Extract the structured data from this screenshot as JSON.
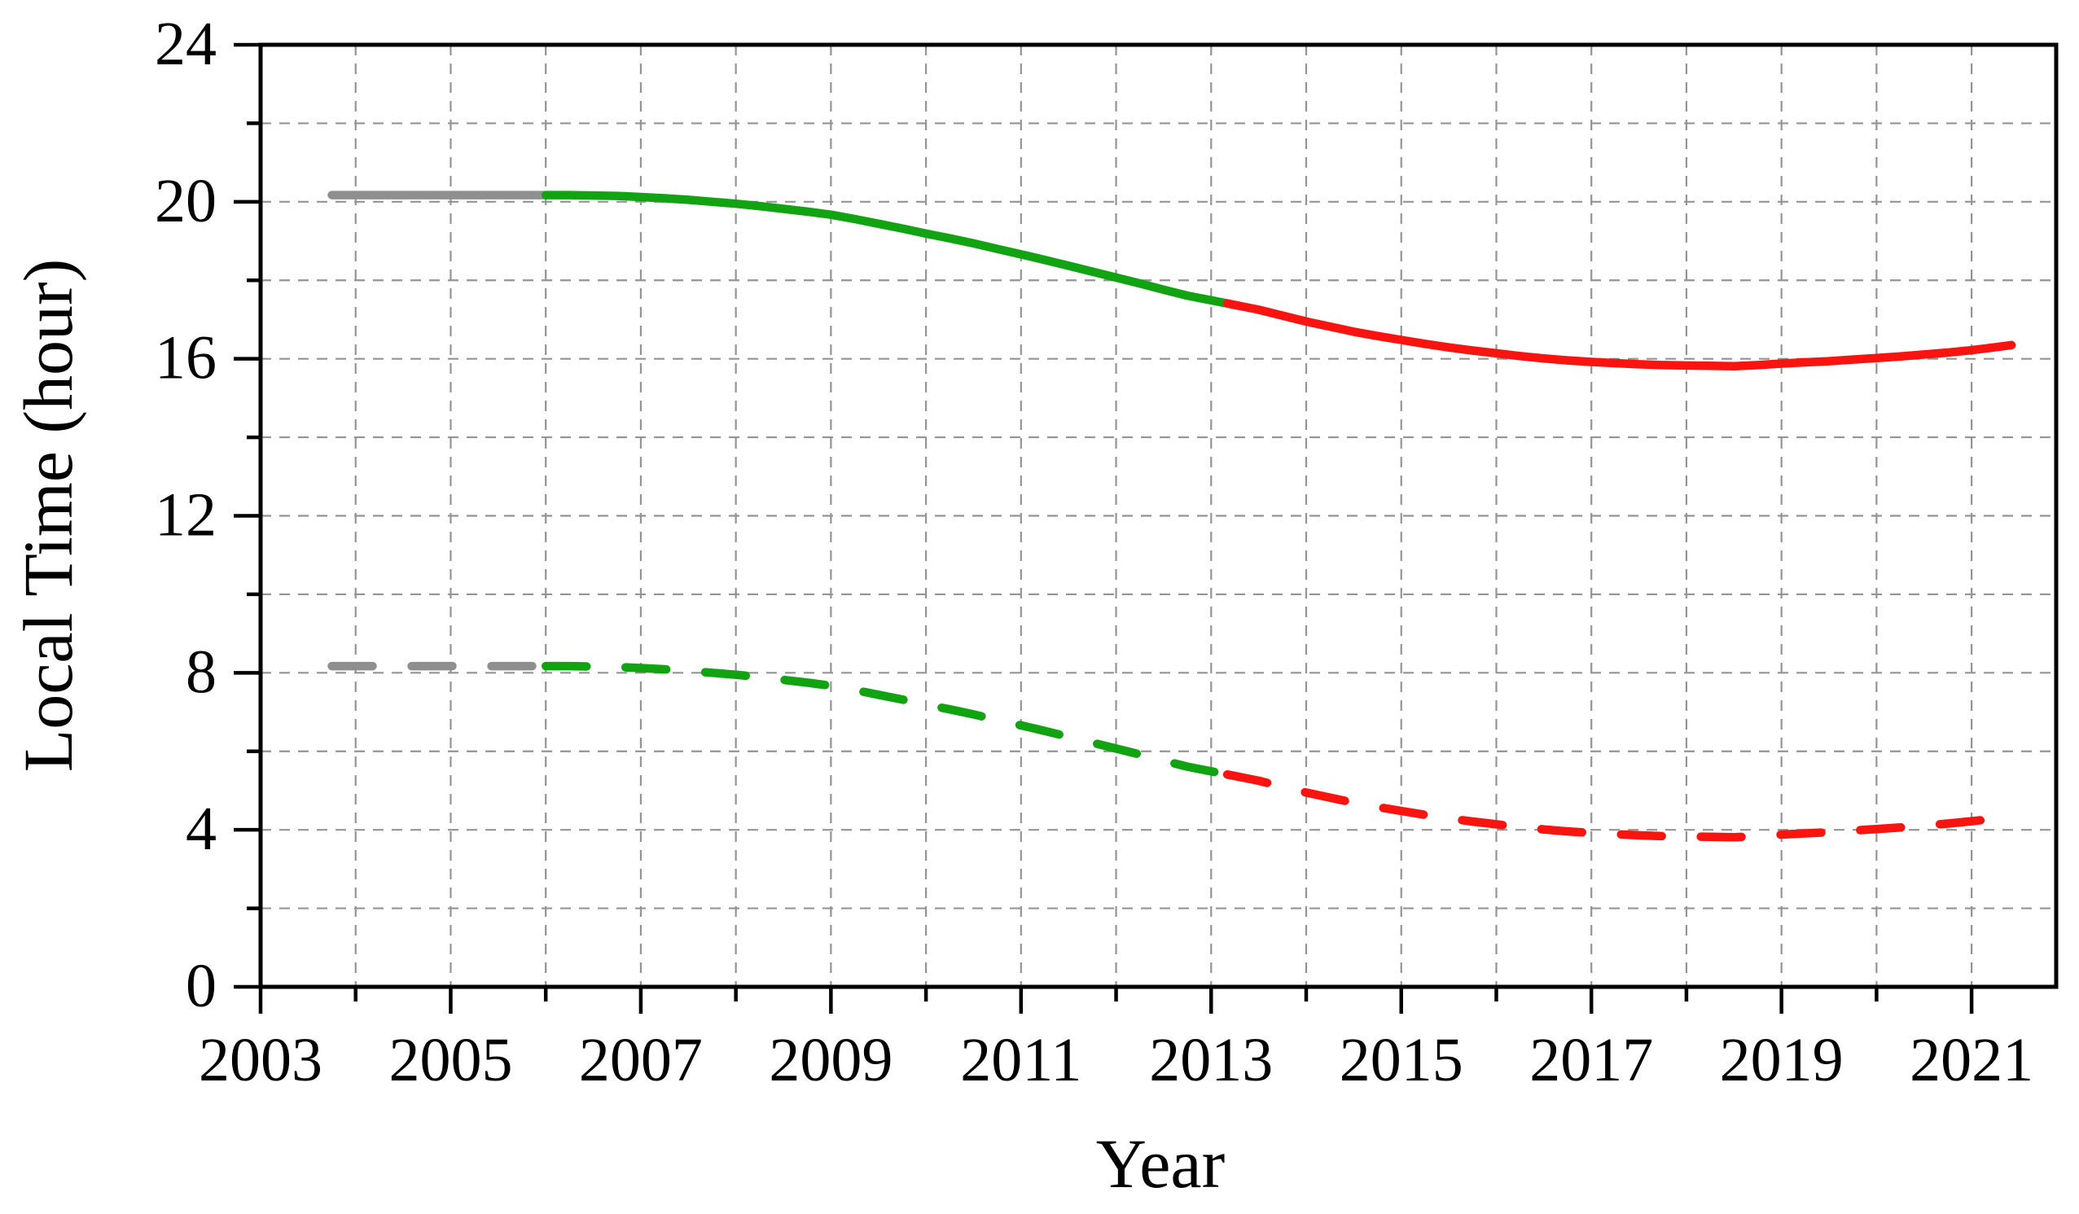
{
  "figure": {
    "background_color": "#ffffff",
    "frame_color": "#000000",
    "grid_color": "#949494"
  },
  "chart_data": {
    "type": "line",
    "title": "",
    "xlabel": "Year",
    "ylabel": "Local Time (hour)",
    "xlim": [
      2003,
      2021.89
    ],
    "ylim": [
      0,
      24
    ],
    "grid": "dashed gray grid at every year (x) and every 2 hours (y)",
    "legend": "none",
    "x_major_ticks": [
      2003,
      2005,
      2007,
      2009,
      2011,
      2013,
      2015,
      2017,
      2019,
      2021
    ],
    "x_major_tick_labels": [
      "2003",
      "2005",
      "2007",
      "2009",
      "2011",
      "2013",
      "2015",
      "2017",
      "2019",
      "2021"
    ],
    "x_minor_ticks": [
      2004,
      2006,
      2008,
      2010,
      2012,
      2014,
      2016,
      2018,
      2020
    ],
    "x_grid_years": [
      2004,
      2005,
      2006,
      2007,
      2008,
      2009,
      2010,
      2011,
      2012,
      2013,
      2014,
      2015,
      2016,
      2017,
      2018,
      2019,
      2020,
      2021
    ],
    "y_major_ticks": [
      0,
      4,
      8,
      12,
      16,
      20,
      24
    ],
    "y_major_tick_labels": [
      "0",
      "4",
      "8",
      "12",
      "16",
      "20",
      "24"
    ],
    "y_minor_ticks": [
      2,
      6,
      10,
      14,
      18,
      22
    ],
    "y_grid_hours": [
      2,
      4,
      6,
      8,
      10,
      12,
      14,
      16,
      18,
      20,
      22
    ],
    "series": [
      {
        "name": "upper_gray_segment",
        "line_style": "solid",
        "color": "#8f8f8f",
        "width": 10.5,
        "points": [
          [
            2003.75,
            20.17
          ],
          [
            2004.5,
            20.17
          ],
          [
            2005.25,
            20.17
          ],
          [
            2006.0,
            20.17
          ]
        ]
      },
      {
        "name": "upper_green_segment",
        "line_style": "solid",
        "color": "#12a312",
        "width": 10.5,
        "points": [
          [
            2006.0,
            20.17
          ],
          [
            2006.25,
            20.17
          ],
          [
            2006.5,
            20.16
          ],
          [
            2006.75,
            20.15
          ],
          [
            2007.0,
            20.12
          ],
          [
            2007.25,
            20.09
          ],
          [
            2007.5,
            20.05
          ],
          [
            2007.75,
            20.0
          ],
          [
            2008.0,
            19.95
          ],
          [
            2008.25,
            19.89
          ],
          [
            2008.5,
            19.82
          ],
          [
            2008.75,
            19.75
          ],
          [
            2009.0,
            19.67
          ],
          [
            2009.25,
            19.56
          ],
          [
            2009.5,
            19.44
          ],
          [
            2009.75,
            19.32
          ],
          [
            2010.0,
            19.19
          ],
          [
            2010.25,
            19.07
          ],
          [
            2010.5,
            18.94
          ],
          [
            2010.75,
            18.8
          ],
          [
            2011.0,
            18.66
          ],
          [
            2011.25,
            18.52
          ],
          [
            2011.5,
            18.37
          ],
          [
            2011.75,
            18.22
          ],
          [
            2012.0,
            18.07
          ],
          [
            2012.25,
            17.92
          ],
          [
            2012.5,
            17.76
          ],
          [
            2012.75,
            17.61
          ],
          [
            2013.0,
            17.49
          ],
          [
            2013.17,
            17.41
          ]
        ]
      },
      {
        "name": "upper_red_segment",
        "line_style": "solid",
        "color": "#fa1410",
        "width": 10.5,
        "points": [
          [
            2013.17,
            17.41
          ],
          [
            2013.5,
            17.25
          ],
          [
            2013.75,
            17.1
          ],
          [
            2014.0,
            16.95
          ],
          [
            2014.25,
            16.82
          ],
          [
            2014.5,
            16.69
          ],
          [
            2014.75,
            16.58
          ],
          [
            2015.0,
            16.48
          ],
          [
            2015.25,
            16.38
          ],
          [
            2015.5,
            16.29
          ],
          [
            2015.75,
            16.21
          ],
          [
            2016.0,
            16.14
          ],
          [
            2016.25,
            16.07
          ],
          [
            2016.5,
            16.01
          ],
          [
            2016.75,
            15.96
          ],
          [
            2017.0,
            15.92
          ],
          [
            2017.25,
            15.89
          ],
          [
            2017.5,
            15.86
          ],
          [
            2017.75,
            15.84
          ],
          [
            2018.0,
            15.83
          ],
          [
            2018.25,
            15.82
          ],
          [
            2018.5,
            15.81
          ],
          [
            2018.75,
            15.84
          ],
          [
            2019.0,
            15.88
          ],
          [
            2019.25,
            15.91
          ],
          [
            2019.5,
            15.94
          ],
          [
            2019.75,
            15.98
          ],
          [
            2020.0,
            16.02
          ],
          [
            2020.25,
            16.06
          ],
          [
            2020.5,
            16.11
          ],
          [
            2020.75,
            16.16
          ],
          [
            2021.0,
            16.22
          ],
          [
            2021.2,
            16.28
          ],
          [
            2021.42,
            16.35
          ]
        ]
      },
      {
        "name": "lower_gray_segment",
        "line_style": "dashed",
        "color": "#8f8f8f",
        "width": 10.5,
        "points": [
          [
            2003.75,
            8.17
          ],
          [
            2004.5,
            8.17
          ],
          [
            2005.25,
            8.17
          ],
          [
            2006.0,
            8.17
          ]
        ]
      },
      {
        "name": "lower_green_segment",
        "line_style": "dashed",
        "color": "#12a312",
        "width": 10.5,
        "points": [
          [
            2006.0,
            8.17
          ],
          [
            2006.25,
            8.17
          ],
          [
            2006.5,
            8.16
          ],
          [
            2006.75,
            8.15
          ],
          [
            2007.0,
            8.12
          ],
          [
            2007.25,
            8.09
          ],
          [
            2007.5,
            8.05
          ],
          [
            2007.75,
            8.0
          ],
          [
            2008.0,
            7.95
          ],
          [
            2008.25,
            7.89
          ],
          [
            2008.5,
            7.82
          ],
          [
            2008.75,
            7.75
          ],
          [
            2009.0,
            7.67
          ],
          [
            2009.25,
            7.56
          ],
          [
            2009.5,
            7.44
          ],
          [
            2009.75,
            7.32
          ],
          [
            2010.0,
            7.19
          ],
          [
            2010.25,
            7.07
          ],
          [
            2010.5,
            6.94
          ],
          [
            2010.75,
            6.8
          ],
          [
            2011.0,
            6.66
          ],
          [
            2011.25,
            6.52
          ],
          [
            2011.5,
            6.37
          ],
          [
            2011.75,
            6.22
          ],
          [
            2012.0,
            6.07
          ],
          [
            2012.25,
            5.92
          ],
          [
            2012.5,
            5.76
          ],
          [
            2012.75,
            5.61
          ],
          [
            2013.0,
            5.49
          ],
          [
            2013.17,
            5.41
          ]
        ]
      },
      {
        "name": "lower_red_segment",
        "line_style": "dashed",
        "color": "#fa1410",
        "width": 10.5,
        "points": [
          [
            2013.17,
            5.41
          ],
          [
            2013.5,
            5.25
          ],
          [
            2013.75,
            5.1
          ],
          [
            2014.0,
            4.95
          ],
          [
            2014.25,
            4.82
          ],
          [
            2014.5,
            4.69
          ],
          [
            2014.75,
            4.58
          ],
          [
            2015.0,
            4.48
          ],
          [
            2015.25,
            4.38
          ],
          [
            2015.5,
            4.29
          ],
          [
            2015.75,
            4.21
          ],
          [
            2016.0,
            4.14
          ],
          [
            2016.25,
            4.07
          ],
          [
            2016.5,
            4.01
          ],
          [
            2016.75,
            3.96
          ],
          [
            2017.0,
            3.92
          ],
          [
            2017.25,
            3.89
          ],
          [
            2017.5,
            3.86
          ],
          [
            2017.75,
            3.84
          ],
          [
            2018.0,
            3.83
          ],
          [
            2018.25,
            3.82
          ],
          [
            2018.5,
            3.81
          ],
          [
            2018.75,
            3.84
          ],
          [
            2019.0,
            3.88
          ],
          [
            2019.25,
            3.91
          ],
          [
            2019.5,
            3.94
          ],
          [
            2019.75,
            3.98
          ],
          [
            2020.0,
            4.02
          ],
          [
            2020.25,
            4.06
          ],
          [
            2020.5,
            4.11
          ],
          [
            2020.75,
            4.16
          ],
          [
            2021.0,
            4.22
          ],
          [
            2021.35,
            4.31
          ]
        ]
      }
    ]
  }
}
